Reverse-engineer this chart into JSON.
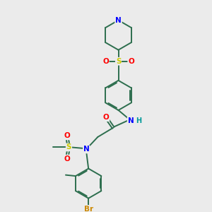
{
  "bg_color": "#ebebeb",
  "bond_color": "#2d6e4e",
  "atom_colors": {
    "N": "#0000ff",
    "O": "#ff0000",
    "S": "#cccc00",
    "Br": "#cc8800",
    "H": "#009999",
    "C_label": "#2d6e4e"
  },
  "bond_width": 1.4,
  "figsize": [
    3.0,
    3.0
  ],
  "dpi": 100
}
